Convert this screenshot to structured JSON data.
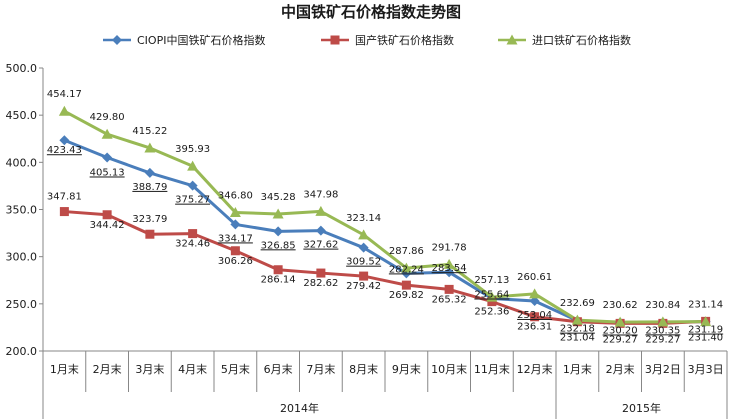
{
  "chart_data": {
    "type": "line",
    "title": "中国铁矿石价格指数走势图",
    "categories": [
      "1月末",
      "2月末",
      "3月末",
      "4月末",
      "5月末",
      "6月末",
      "7月末",
      "8月末",
      "9月末",
      "10月末",
      "11月末",
      "12月末",
      "1月末",
      "2月末",
      "3月2日",
      "3月3日"
    ],
    "year_groups": [
      {
        "label": "2014年",
        "start": 0,
        "end": 11
      },
      {
        "label": "2015年",
        "start": 12,
        "end": 15
      }
    ],
    "ylim": [
      200,
      500
    ],
    "yticks": [
      "200.0",
      "250.0",
      "300.0",
      "350.0",
      "400.0",
      "450.0",
      "500.0"
    ],
    "grid": false,
    "legend": "top",
    "series": [
      {
        "name": "CIOPI中国铁矿石价格指数",
        "color": "#4a7ebb",
        "marker": "diamond",
        "values": [
          423.43,
          405.13,
          388.79,
          375.27,
          334.17,
          326.85,
          327.62,
          309.52,
          282.24,
          283.54,
          255.64,
          253.04,
          232.18,
          230.2,
          230.35,
          231.19
        ],
        "labels": [
          "423.43",
          "405.13",
          "388.79",
          "375.27",
          "334.17",
          "326.85",
          "327.62",
          "309.52",
          "282.24",
          "283.54",
          "255.64",
          "253.04",
          "232.18",
          "230.20",
          "230.35",
          "231.19"
        ]
      },
      {
        "name": "国产铁矿石价格指数",
        "color": "#be4b48",
        "marker": "square",
        "values": [
          347.81,
          344.42,
          323.79,
          324.46,
          306.26,
          286.14,
          282.62,
          279.42,
          269.82,
          265.32,
          252.36,
          236.31,
          231.04,
          229.27,
          229.27,
          231.4
        ],
        "labels": [
          "347.81",
          "344.42",
          "323.79",
          "324.46",
          "306.26",
          "286.14",
          "282.62",
          "279.42",
          "269.82",
          "265.32",
          "252.36",
          "236.31",
          "231.04",
          "229.27",
          "229.27",
          "231.40"
        ]
      },
      {
        "name": "进口铁矿石价格指数",
        "color": "#98b954",
        "marker": "triangle",
        "values": [
          454.17,
          429.8,
          415.22,
          395.93,
          346.8,
          345.28,
          347.98,
          323.14,
          287.86,
          291.78,
          257.13,
          260.61,
          232.69,
          230.62,
          230.84,
          231.14
        ],
        "labels": [
          "454.17",
          "429.80",
          "415.22",
          "395.93",
          "346.80",
          "345.28",
          "347.98",
          "323.14",
          "287.86",
          "291.78",
          "257.13",
          "260.61",
          "232.69",
          "230.62",
          "230.84",
          "231.14"
        ]
      }
    ]
  }
}
